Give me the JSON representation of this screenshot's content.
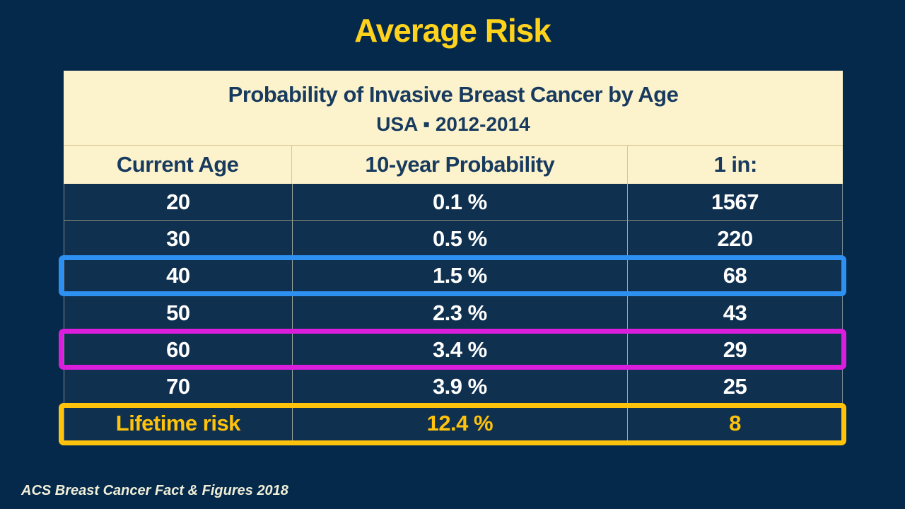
{
  "slide": {
    "title": "Average Risk",
    "footer": "ACS Breast Cancer Fact & Figures 2018"
  },
  "table": {
    "title_line1": "Probability of Invasive Breast Cancer by Age",
    "title_line2": "USA ▪ 2012-2014",
    "columns": [
      "Current Age",
      "10-year Probability",
      "1 in:"
    ],
    "rows": [
      {
        "age": "20",
        "probability": "0.1 %",
        "one_in": "1567",
        "highlight": null
      },
      {
        "age": "30",
        "probability": "0.5 %",
        "one_in": "220",
        "highlight": null
      },
      {
        "age": "40",
        "probability": "1.5 %",
        "one_in": "68",
        "highlight": "blue"
      },
      {
        "age": "50",
        "probability": "2.3 %",
        "one_in": "43",
        "highlight": null
      },
      {
        "age": "60",
        "probability": "3.4 %",
        "one_in": "29",
        "highlight": "magenta"
      },
      {
        "age": "70",
        "probability": "3.9 %",
        "one_in": "25",
        "highlight": "gold-text-row-no"
      },
      {
        "age": "Lifetime risk",
        "probability": "12.4 %",
        "one_in": "8",
        "highlight": "gold"
      }
    ]
  },
  "colors": {
    "background": "#04294B",
    "row_background": "#10304F",
    "header_background": "#FCF3CC",
    "header_text": "#173A5E",
    "slide_title_text": "#FFD21C",
    "body_text": "#FFFFFF",
    "gold_highlight": "#FFC30B",
    "blue_highlight": "#2E90F0",
    "magenta_highlight": "#DB1EDC"
  },
  "chart_data": {
    "type": "table",
    "title": "Probability of Invasive Breast Cancer by Age — USA 2012-2014",
    "columns": [
      "Current Age",
      "10-year Probability",
      "1 in:"
    ],
    "rows": [
      [
        "20",
        "0.1 %",
        "1567"
      ],
      [
        "30",
        "0.5 %",
        "220"
      ],
      [
        "40",
        "1.5 %",
        "68"
      ],
      [
        "50",
        "2.3 %",
        "43"
      ],
      [
        "60",
        "3.4 %",
        "29"
      ],
      [
        "70",
        "3.9 %",
        "25"
      ],
      [
        "Lifetime risk",
        "12.4 %",
        "8"
      ]
    ]
  }
}
